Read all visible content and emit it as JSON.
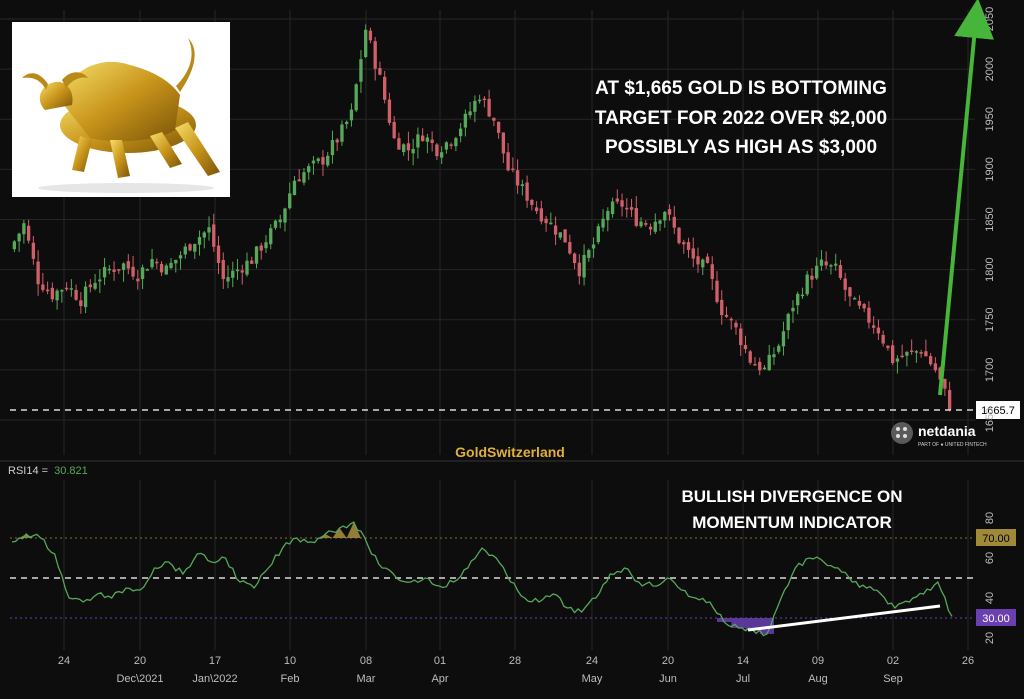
{
  "colors": {
    "background": "#0d0d0d",
    "grid": "#262626",
    "up": "#56a85a",
    "down": "#d15f6a",
    "rsi_line": "#56a85a",
    "oversold_fill": "#6a3fb0",
    "overbought_fill": "#a08a3a",
    "target_arrow": "#46b53a",
    "divergence_line": "#ffffff",
    "watermark": "#e0b038"
  },
  "logo_icon": "golden-bull-image",
  "watermark": "GoldSwitzerland",
  "brand": {
    "name": "netdania",
    "sub": "PART OF ● UNITED FINTECH",
    "icon": "netdania-cube-icon"
  },
  "headline": [
    "AT $1,665 GOLD IS BOTTOMING",
    "TARGET FOR 2022 OVER $2,000",
    "POSSIBLY AS HIGH AS $3,000"
  ],
  "chart_data": [
    {
      "type": "candlestick",
      "title": "",
      "price_axis_ticks": [
        "2050",
        "2000",
        "1950",
        "1900",
        "1850",
        "1800",
        "1750",
        "1700",
        "1650"
      ],
      "ylim": [
        1640,
        2055
      ],
      "current_price_label": "1665.7",
      "current_price": 1665.7,
      "x_tick_labels": [
        "24",
        "20",
        "17",
        "10",
        "08",
        "01",
        "28",
        "24",
        "20",
        "14",
        "09",
        "02",
        "26"
      ],
      "x_month_labels": [
        "Dec\\2021",
        "Jan\\2022",
        "Feb",
        "Mar",
        "Apr",
        "May",
        "Jun",
        "Jul",
        "Aug",
        "Sep"
      ],
      "close_path": [
        1820,
        1845,
        1790,
        1775,
        1785,
        1770,
        1790,
        1800,
        1805,
        1795,
        1810,
        1800,
        1815,
        1830,
        1840,
        1790,
        1800,
        1810,
        1830,
        1850,
        1890,
        1900,
        1910,
        1930,
        1955,
        2040,
        1990,
        1930,
        1920,
        1935,
        1920,
        1930,
        1950,
        1975,
        1950,
        1900,
        1880,
        1860,
        1845,
        1830,
        1800,
        1825,
        1860,
        1865,
        1850,
        1845,
        1860,
        1830,
        1810,
        1800,
        1760,
        1740,
        1710,
        1700,
        1725,
        1765,
        1790,
        1805,
        1800,
        1770,
        1755,
        1740,
        1710,
        1715,
        1720,
        1700,
        1665
      ],
      "annotations": [
        "target arrow toward 2050"
      ]
    },
    {
      "type": "line",
      "title": "RSI14",
      "indicator_name": "RSI14 =",
      "indicator_value": "30.821",
      "ylim": [
        15,
        95
      ],
      "axis_ticks": [
        80,
        60,
        40,
        20
      ],
      "overbought": 70.0,
      "oversold": 30.0,
      "overbought_label": "70.00",
      "oversold_label": "30.00",
      "midline": 50,
      "values": [
        68,
        72,
        70,
        62,
        40,
        38,
        42,
        40,
        45,
        44,
        55,
        58,
        52,
        62,
        58,
        60,
        48,
        45,
        55,
        65,
        70,
        68,
        72,
        75,
        78,
        66,
        55,
        50,
        48,
        50,
        46,
        48,
        55,
        65,
        60,
        48,
        40,
        38,
        42,
        35,
        33,
        40,
        52,
        55,
        48,
        46,
        50,
        44,
        40,
        38,
        28,
        25,
        24,
        22,
        40,
        55,
        60,
        58,
        55,
        48,
        45,
        42,
        35,
        38,
        42,
        48,
        30.8
      ],
      "annotation": [
        "BULLISH DIVERGENCE ON",
        "MOMENTUM INDICATOR"
      ]
    }
  ]
}
